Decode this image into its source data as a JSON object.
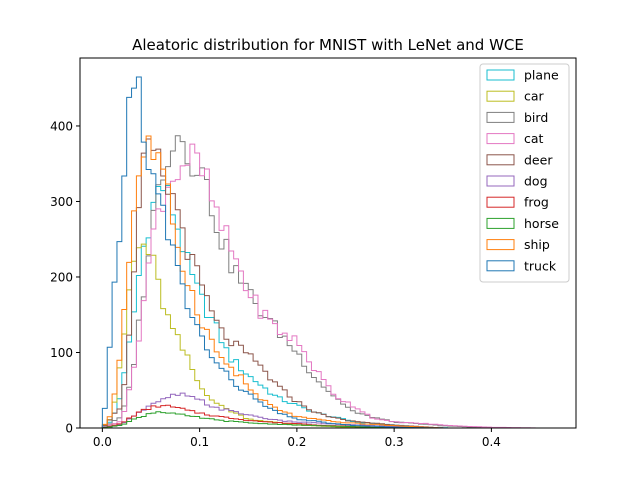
{
  "chart_data": {
    "type": "histogram",
    "title": "Aleatoric distribution for MNIST with LeNet and WCE",
    "xlabel": "",
    "ylabel": "",
    "xlim": [
      -0.023,
      0.487
    ],
    "ylim": [
      0,
      490
    ],
    "xticks": [
      "0.0",
      "0.1",
      "0.2",
      "0.3",
      "0.4"
    ],
    "yticks": [
      "0",
      "100",
      "200",
      "300",
      "400"
    ],
    "legend_position": "top-right",
    "grid": false,
    "series": [
      {
        "name": "plane",
        "color": "#17becf",
        "bin_width": 0.005,
        "points": [
          [
            0.0,
            0
          ],
          [
            0.01,
            10
          ],
          [
            0.02,
            50
          ],
          [
            0.03,
            130
          ],
          [
            0.04,
            225
          ],
          [
            0.05,
            285
          ],
          [
            0.06,
            325
          ],
          [
            0.07,
            300
          ],
          [
            0.08,
            255
          ],
          [
            0.09,
            205
          ],
          [
            0.1,
            175
          ],
          [
            0.11,
            150
          ],
          [
            0.12,
            125
          ],
          [
            0.13,
            95
          ],
          [
            0.15,
            70
          ],
          [
            0.18,
            40
          ],
          [
            0.22,
            20
          ],
          [
            0.26,
            8
          ],
          [
            0.3,
            4
          ],
          [
            0.33,
            1
          ],
          [
            0.36,
            0
          ]
        ]
      },
      {
        "name": "car",
        "color": "#bcbd22",
        "bin_width": 0.005,
        "points": [
          [
            0.0,
            0
          ],
          [
            0.01,
            15
          ],
          [
            0.02,
            95
          ],
          [
            0.03,
            210
          ],
          [
            0.04,
            245
          ],
          [
            0.05,
            230
          ],
          [
            0.06,
            175
          ],
          [
            0.07,
            135
          ],
          [
            0.08,
            110
          ],
          [
            0.09,
            85
          ],
          [
            0.1,
            55
          ],
          [
            0.12,
            30
          ],
          [
            0.15,
            12
          ],
          [
            0.2,
            4
          ],
          [
            0.25,
            1
          ],
          [
            0.3,
            0
          ]
        ]
      },
      {
        "name": "bird",
        "color": "#7f7f7f",
        "bin_width": 0.005,
        "points": [
          [
            0.0,
            0
          ],
          [
            0.02,
            15
          ],
          [
            0.03,
            65
          ],
          [
            0.04,
            160
          ],
          [
            0.05,
            260
          ],
          [
            0.06,
            335
          ],
          [
            0.07,
            380
          ],
          [
            0.08,
            390
          ],
          [
            0.09,
            360
          ],
          [
            0.1,
            350
          ],
          [
            0.11,
            305
          ],
          [
            0.12,
            260
          ],
          [
            0.13,
            225
          ],
          [
            0.14,
            200
          ],
          [
            0.16,
            160
          ],
          [
            0.18,
            130
          ],
          [
            0.2,
            100
          ],
          [
            0.22,
            65
          ],
          [
            0.24,
            40
          ],
          [
            0.26,
            20
          ],
          [
            0.3,
            8
          ],
          [
            0.35,
            3
          ],
          [
            0.4,
            0
          ]
        ]
      },
      {
        "name": "cat",
        "color": "#e377c2",
        "bin_width": 0.005,
        "points": [
          [
            0.0,
            0
          ],
          [
            0.02,
            10
          ],
          [
            0.03,
            60
          ],
          [
            0.04,
            145
          ],
          [
            0.05,
            240
          ],
          [
            0.06,
            300
          ],
          [
            0.07,
            330
          ],
          [
            0.08,
            345
          ],
          [
            0.09,
            360
          ],
          [
            0.1,
            345
          ],
          [
            0.11,
            315
          ],
          [
            0.12,
            270
          ],
          [
            0.13,
            245
          ],
          [
            0.14,
            215
          ],
          [
            0.15,
            180
          ],
          [
            0.16,
            160
          ],
          [
            0.18,
            130
          ],
          [
            0.2,
            115
          ],
          [
            0.22,
            75
          ],
          [
            0.24,
            42
          ],
          [
            0.26,
            28
          ],
          [
            0.28,
            12
          ],
          [
            0.3,
            8
          ],
          [
            0.33,
            6
          ],
          [
            0.36,
            3
          ],
          [
            0.4,
            1
          ],
          [
            0.45,
            0
          ]
        ]
      },
      {
        "name": "deer",
        "color": "#8c564b",
        "bin_width": 0.005,
        "points": [
          [
            0.0,
            0
          ],
          [
            0.02,
            30
          ],
          [
            0.03,
            150
          ],
          [
            0.04,
            330
          ],
          [
            0.05,
            375
          ],
          [
            0.06,
            340
          ],
          [
            0.07,
            310
          ],
          [
            0.08,
            280
          ],
          [
            0.09,
            225
          ],
          [
            0.1,
            195
          ],
          [
            0.11,
            160
          ],
          [
            0.12,
            130
          ],
          [
            0.14,
            105
          ],
          [
            0.16,
            85
          ],
          [
            0.18,
            55
          ],
          [
            0.2,
            35
          ],
          [
            0.22,
            20
          ],
          [
            0.25,
            10
          ],
          [
            0.3,
            4
          ],
          [
            0.35,
            0
          ]
        ]
      },
      {
        "name": "dog",
        "color": "#9467bd",
        "bin_width": 0.005,
        "points": [
          [
            0.0,
            0
          ],
          [
            0.02,
            5
          ],
          [
            0.03,
            15
          ],
          [
            0.04,
            22
          ],
          [
            0.05,
            30
          ],
          [
            0.06,
            35
          ],
          [
            0.07,
            42
          ],
          [
            0.08,
            45
          ],
          [
            0.09,
            40
          ],
          [
            0.1,
            37
          ],
          [
            0.11,
            30
          ],
          [
            0.12,
            26
          ],
          [
            0.14,
            20
          ],
          [
            0.16,
            15
          ],
          [
            0.18,
            10
          ],
          [
            0.2,
            8
          ],
          [
            0.24,
            5
          ],
          [
            0.3,
            2
          ],
          [
            0.35,
            0
          ]
        ]
      },
      {
        "name": "frog",
        "color": "#d62728",
        "bin_width": 0.005,
        "points": [
          [
            0.0,
            0
          ],
          [
            0.02,
            6
          ],
          [
            0.03,
            15
          ],
          [
            0.04,
            22
          ],
          [
            0.05,
            27
          ],
          [
            0.06,
            30
          ],
          [
            0.07,
            28
          ],
          [
            0.08,
            26
          ],
          [
            0.09,
            22
          ],
          [
            0.1,
            20
          ],
          [
            0.12,
            15
          ],
          [
            0.14,
            12
          ],
          [
            0.16,
            9
          ],
          [
            0.18,
            7
          ],
          [
            0.2,
            6
          ],
          [
            0.22,
            4
          ],
          [
            0.26,
            2
          ],
          [
            0.3,
            0
          ]
        ]
      },
      {
        "name": "horse",
        "color": "#2ca02c",
        "bin_width": 0.005,
        "points": [
          [
            0.0,
            0
          ],
          [
            0.02,
            4
          ],
          [
            0.03,
            10
          ],
          [
            0.04,
            15
          ],
          [
            0.05,
            20
          ],
          [
            0.06,
            22
          ],
          [
            0.07,
            20
          ],
          [
            0.08,
            18
          ],
          [
            0.09,
            15
          ],
          [
            0.1,
            14
          ],
          [
            0.12,
            10
          ],
          [
            0.14,
            8
          ],
          [
            0.16,
            6
          ],
          [
            0.2,
            4
          ],
          [
            0.25,
            2
          ],
          [
            0.3,
            0
          ]
        ]
      },
      {
        "name": "ship",
        "color": "#ff7f0e",
        "bin_width": 0.005,
        "points": [
          [
            0.0,
            0
          ],
          [
            0.01,
            20
          ],
          [
            0.02,
            120
          ],
          [
            0.03,
            260
          ],
          [
            0.04,
            365
          ],
          [
            0.05,
            375
          ],
          [
            0.06,
            340
          ],
          [
            0.07,
            290
          ],
          [
            0.08,
            230
          ],
          [
            0.09,
            185
          ],
          [
            0.1,
            150
          ],
          [
            0.11,
            120
          ],
          [
            0.12,
            95
          ],
          [
            0.14,
            70
          ],
          [
            0.16,
            40
          ],
          [
            0.18,
            25
          ],
          [
            0.2,
            15
          ],
          [
            0.24,
            8
          ],
          [
            0.3,
            3
          ],
          [
            0.35,
            0
          ]
        ]
      },
      {
        "name": "truck",
        "color": "#1f77b4",
        "bin_width": 0.005,
        "points": [
          [
            0.0,
            0
          ],
          [
            0.005,
            50
          ],
          [
            0.01,
            150
          ],
          [
            0.02,
            290
          ],
          [
            0.025,
            400
          ],
          [
            0.03,
            445
          ],
          [
            0.035,
            462
          ],
          [
            0.04,
            440
          ],
          [
            0.045,
            370
          ],
          [
            0.05,
            330
          ],
          [
            0.06,
            295
          ],
          [
            0.07,
            245
          ],
          [
            0.08,
            195
          ],
          [
            0.09,
            155
          ],
          [
            0.1,
            125
          ],
          [
            0.11,
            100
          ],
          [
            0.12,
            80
          ],
          [
            0.14,
            55
          ],
          [
            0.16,
            35
          ],
          [
            0.18,
            20
          ],
          [
            0.2,
            12
          ],
          [
            0.25,
            4
          ],
          [
            0.3,
            1
          ],
          [
            0.35,
            0
          ]
        ]
      }
    ]
  }
}
